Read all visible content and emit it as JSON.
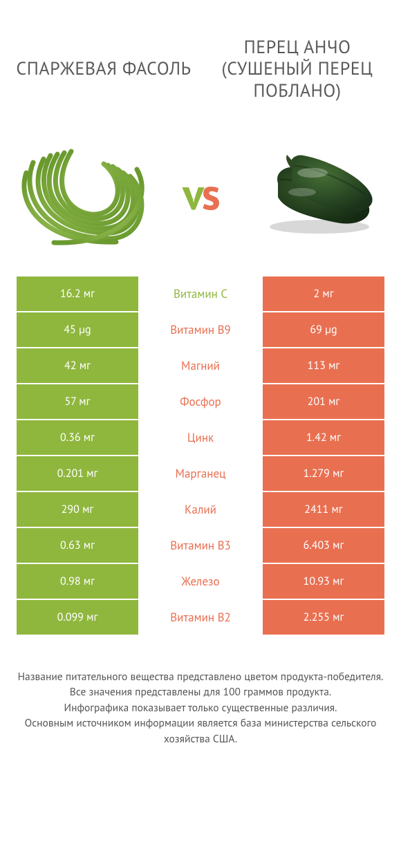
{
  "colors": {
    "left": "#8fb73e",
    "right": "#e96f51",
    "vs_v": "#8fb73e",
    "vs_s": "#e96f51",
    "title": "#5a5a5a",
    "footer_text": "#555555",
    "row_value_text": "#ffffff",
    "bg": "#ffffff"
  },
  "fonts": {
    "title_size": 26,
    "vs_size": 64,
    "row_value_size": 16,
    "row_label_size": 17,
    "footer_size": 15.5
  },
  "left": {
    "title": "СПАРЖЕВАЯ ФАСОЛЬ",
    "image_name": "green-beans"
  },
  "right": {
    "title": "ПЕРЕЦ АНЧО (СУШЕНЫЙ ПЕРЕЦ ПОБЛАНО)",
    "image_name": "poblano-peppers"
  },
  "vs_label": "vs",
  "rows": [
    {
      "label": "Витамин C",
      "left": "16.2 мг",
      "right": "2 мг",
      "winner": "left"
    },
    {
      "label": "Витамин B9",
      "left": "45 µg",
      "right": "69 µg",
      "winner": "right"
    },
    {
      "label": "Магний",
      "left": "42 мг",
      "right": "113 мг",
      "winner": "right"
    },
    {
      "label": "Фосфор",
      "left": "57 мг",
      "right": "201 мг",
      "winner": "right"
    },
    {
      "label": "Цинк",
      "left": "0.36 мг",
      "right": "1.42 мг",
      "winner": "right"
    },
    {
      "label": "Марганец",
      "left": "0.201 мг",
      "right": "1.279 мг",
      "winner": "right"
    },
    {
      "label": "Калий",
      "left": "290 мг",
      "right": "2411 мг",
      "winner": "right"
    },
    {
      "label": "Витамин B3",
      "left": "0.63 мг",
      "right": "6.403 мг",
      "winner": "right"
    },
    {
      "label": "Железо",
      "left": "0.98 мг",
      "right": "10.93 мг",
      "winner": "right"
    },
    {
      "label": "Витамин B2",
      "left": "0.099 мг",
      "right": "2.255 мг",
      "winner": "right"
    }
  ],
  "footer": {
    "line1": "Название питательного вещества представлено цветом продукта-победителя.",
    "line2": "Все значения представлены для 100 граммов продукта.",
    "line3": "Инфографика показывает только существенные различия.",
    "line4": "Основным источником информации является база министерства сельского хозяйства США."
  }
}
